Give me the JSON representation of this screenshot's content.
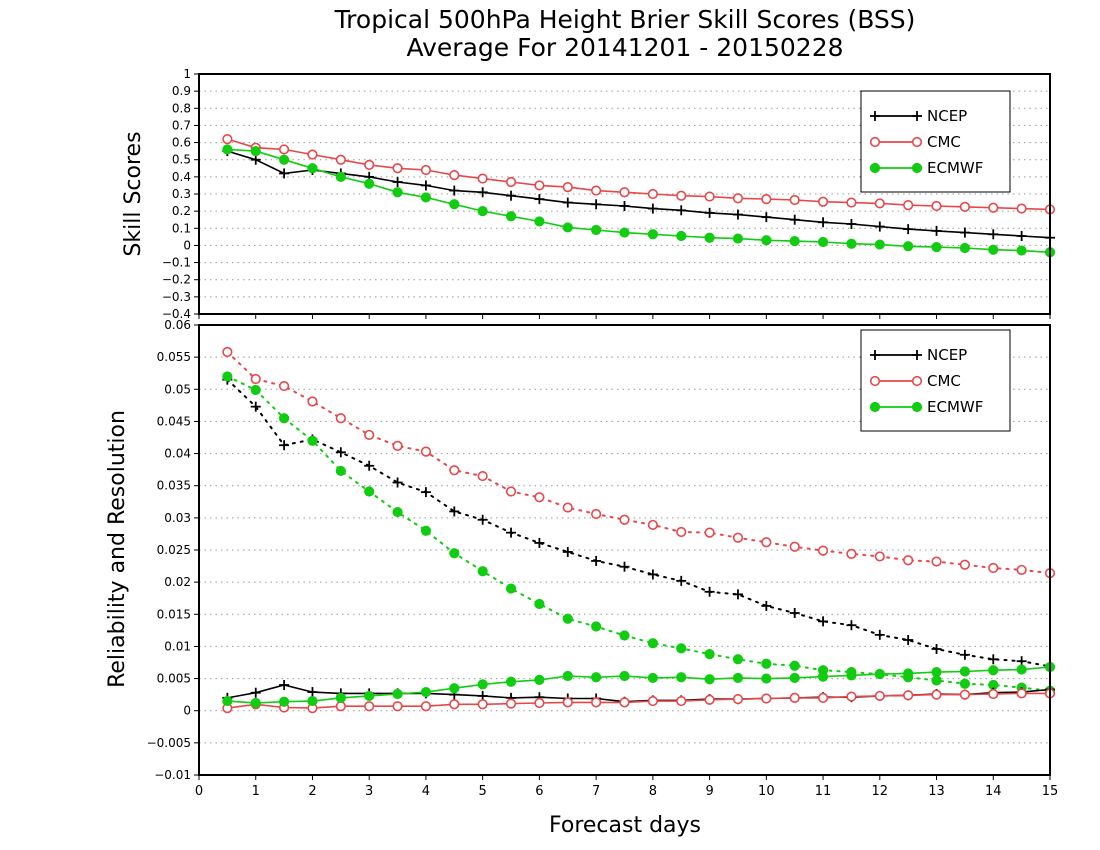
{
  "title_line1": "Tropical 500hPa Height Brier Skill Scores (BSS)",
  "title_line2": "Average For 20141201 - 20150228",
  "xlabel": "Forecast days",
  "colors": {
    "NCEP": "#000000",
    "CMC": "#e8474a",
    "ECMWF": "#11cc11"
  },
  "chart_data": [
    {
      "type": "line",
      "ylabel": "Skill Scores",
      "xlim": [
        0,
        15
      ],
      "ylim": [
        -0.4,
        1
      ],
      "xticks": [
        "0",
        "1",
        "2",
        "3",
        "4",
        "5",
        "6",
        "7",
        "8",
        "9",
        "10",
        "11",
        "12",
        "13",
        "14",
        "15"
      ],
      "yticks": [
        "−0.4",
        "−0.3",
        "−0.2",
        "−0.1",
        "0",
        "0.1",
        "0.2",
        "0.3",
        "0.4",
        "0.5",
        "0.6",
        "0.7",
        "0.8",
        "0.9",
        "1"
      ],
      "grid": true,
      "legend_position": "top-right",
      "x": [
        0.5,
        1,
        1.5,
        2,
        2.5,
        3,
        3.5,
        4,
        4.5,
        5,
        5.5,
        6,
        6.5,
        7,
        7.5,
        8,
        8.5,
        9,
        9.5,
        10,
        10.5,
        11,
        11.5,
        12,
        12.5,
        13,
        13.5,
        14,
        14.5,
        15
      ],
      "series": [
        {
          "name": "NCEP",
          "marker": "plus",
          "line": "solid",
          "values": [
            0.55,
            0.5,
            0.42,
            0.44,
            0.42,
            0.4,
            0.37,
            0.35,
            0.32,
            0.31,
            0.29,
            0.27,
            0.25,
            0.24,
            0.23,
            0.215,
            0.205,
            0.19,
            0.18,
            0.165,
            0.15,
            0.135,
            0.125,
            0.11,
            0.095,
            0.085,
            0.075,
            0.065,
            0.055,
            0.045
          ]
        },
        {
          "name": "CMC",
          "marker": "open-circle",
          "line": "solid",
          "values": [
            0.62,
            0.57,
            0.56,
            0.53,
            0.5,
            0.47,
            0.45,
            0.44,
            0.41,
            0.39,
            0.37,
            0.35,
            0.34,
            0.32,
            0.31,
            0.3,
            0.29,
            0.285,
            0.275,
            0.27,
            0.265,
            0.255,
            0.25,
            0.245,
            0.235,
            0.23,
            0.225,
            0.22,
            0.215,
            0.21
          ]
        },
        {
          "name": "ECMWF",
          "marker": "filled-circle",
          "line": "solid",
          "values": [
            0.56,
            0.55,
            0.5,
            0.45,
            0.4,
            0.36,
            0.31,
            0.28,
            0.24,
            0.2,
            0.17,
            0.14,
            0.105,
            0.09,
            0.075,
            0.065,
            0.055,
            0.045,
            0.04,
            0.03,
            0.025,
            0.02,
            0.01,
            0.005,
            -0.005,
            -0.01,
            -0.015,
            -0.025,
            -0.03,
            -0.04
          ]
        }
      ]
    },
    {
      "type": "line",
      "ylabel": "Reliability and Resolution",
      "xlim": [
        0,
        15
      ],
      "ylim": [
        -0.01,
        0.06
      ],
      "xticks": [
        "0",
        "1",
        "2",
        "3",
        "4",
        "5",
        "6",
        "7",
        "8",
        "9",
        "10",
        "11",
        "12",
        "13",
        "14",
        "15"
      ],
      "yticks": [
        "−0.01",
        "−0.005",
        "0",
        "0.005",
        "0.01",
        "0.015",
        "0.02",
        "0.025",
        "0.03",
        "0.035",
        "0.04",
        "0.045",
        "0.05",
        "0.055",
        "0.06"
      ],
      "grid": true,
      "legend_position": "top-right",
      "x": [
        0.5,
        1,
        1.5,
        2,
        2.5,
        3,
        3.5,
        4,
        4.5,
        5,
        5.5,
        6,
        6.5,
        7,
        7.5,
        8,
        8.5,
        9,
        9.5,
        10,
        10.5,
        11,
        11.5,
        12,
        12.5,
        13,
        13.5,
        14,
        14.5,
        15
      ],
      "series": [
        {
          "name": "NCEP",
          "marker": "plus",
          "line": "dotted",
          "values": [
            0.0515,
            0.0473,
            0.0413,
            0.0422,
            0.0402,
            0.0381,
            0.0355,
            0.034,
            0.031,
            0.0297,
            0.0277,
            0.0261,
            0.0247,
            0.0233,
            0.0224,
            0.0212,
            0.0202,
            0.0185,
            0.0181,
            0.0163,
            0.0152,
            0.0139,
            0.0133,
            0.0118,
            0.011,
            0.0096,
            0.0087,
            0.008,
            0.0077,
            0.0069
          ]
        },
        {
          "name": "CMC",
          "marker": "open-circle",
          "line": "dotted",
          "values": [
            0.0558,
            0.0516,
            0.0505,
            0.0481,
            0.0455,
            0.0429,
            0.0412,
            0.0403,
            0.0374,
            0.0365,
            0.0341,
            0.0332,
            0.0316,
            0.0306,
            0.0297,
            0.0289,
            0.0278,
            0.0277,
            0.0269,
            0.0262,
            0.0255,
            0.0249,
            0.0244,
            0.024,
            0.0234,
            0.0232,
            0.0227,
            0.0222,
            0.0219,
            0.0214
          ]
        },
        {
          "name": "ECMWF",
          "marker": "filled-circle",
          "line": "dotted",
          "values": [
            0.052,
            0.0499,
            0.0455,
            0.042,
            0.0373,
            0.0341,
            0.0309,
            0.028,
            0.0245,
            0.0217,
            0.019,
            0.0166,
            0.0143,
            0.0131,
            0.0117,
            0.0105,
            0.0097,
            0.0088,
            0.008,
            0.0073,
            0.007,
            0.0063,
            0.006,
            0.0057,
            0.0052,
            0.0047,
            0.0042,
            0.004,
            0.0036,
            0.0031
          ]
        },
        {
          "name": "NCEP",
          "marker": "plus",
          "line": "solid",
          "in_legend": false,
          "values": [
            0.002,
            0.0028,
            0.004,
            0.0029,
            0.0027,
            0.0027,
            0.0027,
            0.0027,
            0.0025,
            0.0023,
            0.002,
            0.0021,
            0.0019,
            0.0019,
            0.0014,
            0.0016,
            0.0016,
            0.0018,
            0.0018,
            0.0019,
            0.002,
            0.0021,
            0.0021,
            0.0023,
            0.0024,
            0.0026,
            0.0025,
            0.0028,
            0.0029,
            0.0033
          ]
        },
        {
          "name": "CMC",
          "marker": "open-circle",
          "line": "solid",
          "in_legend": false,
          "values": [
            0.0004,
            0.001,
            0.0005,
            0.0004,
            0.0007,
            0.0007,
            0.0007,
            0.0007,
            0.001,
            0.001,
            0.0011,
            0.0012,
            0.0013,
            0.0013,
            0.0013,
            0.0015,
            0.0015,
            0.0017,
            0.0018,
            0.0019,
            0.002,
            0.002,
            0.0022,
            0.0023,
            0.0024,
            0.0025,
            0.0025,
            0.0026,
            0.0027,
            0.0027
          ]
        },
        {
          "name": "ECMWF",
          "marker": "filled-circle",
          "line": "solid",
          "in_legend": false,
          "values": [
            0.0015,
            0.0012,
            0.0014,
            0.0015,
            0.002,
            0.0023,
            0.0026,
            0.0029,
            0.0035,
            0.0041,
            0.0045,
            0.0048,
            0.0054,
            0.0052,
            0.0054,
            0.0051,
            0.0052,
            0.0049,
            0.0051,
            0.005,
            0.0051,
            0.0053,
            0.0055,
            0.0057,
            0.0058,
            0.006,
            0.0061,
            0.0063,
            0.0064,
            0.0068
          ]
        }
      ]
    }
  ]
}
